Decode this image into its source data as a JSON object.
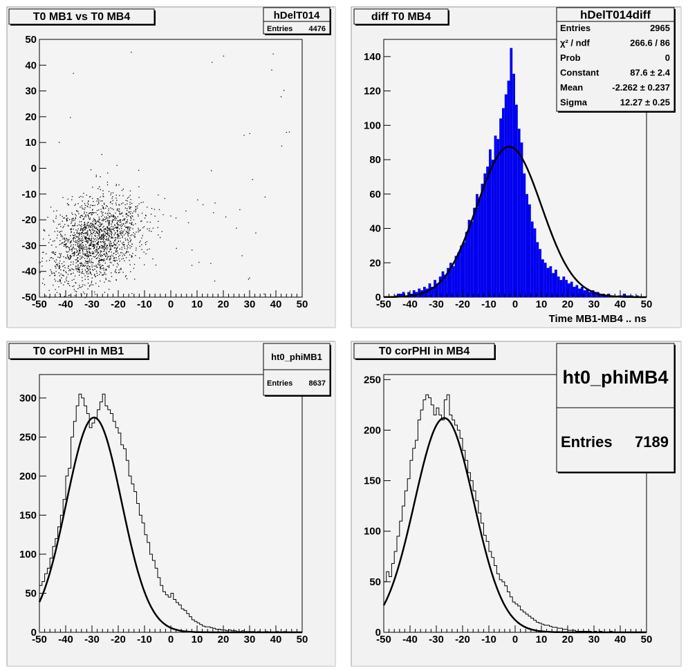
{
  "pads": [
    {
      "title": "T0 MB1 vs T0 MB4",
      "stats": {
        "name": "hDelT014",
        "rows": [
          {
            "label": "Entries",
            "value": "4476"
          }
        ]
      }
    },
    {
      "title": "diff T0 MB4",
      "stats": {
        "name": "hDelT014diff",
        "rows": [
          {
            "label": "Entries",
            "value": "2965"
          },
          {
            "label": "χ² / ndf",
            "value": "266.6 / 86"
          },
          {
            "label": "Prob",
            "value": "0"
          },
          {
            "label": "Constant",
            "value": "87.6 ± 2.4"
          },
          {
            "label": "Mean",
            "value": "-2.262 ± 0.237"
          },
          {
            "label": "Sigma",
            "value": "12.27 ± 0.25"
          }
        ]
      }
    },
    {
      "title": "T0 corPHI in MB1",
      "stats": {
        "name": "ht0_phiMB1",
        "rows": [
          {
            "label": "Entries",
            "value": "8637"
          }
        ]
      }
    },
    {
      "title": "T0 corPHI in MB4",
      "stats": {
        "name": "ht0_phiMB4",
        "rows": [
          {
            "label": "Entries",
            "value": "7189"
          }
        ]
      }
    }
  ],
  "chart_data": [
    {
      "type": "scatter",
      "title": "T0 MB1 vs T0 MB4",
      "xlim": [
        -50,
        50
      ],
      "ylim": [
        -50,
        50
      ],
      "xticks": [
        -50,
        -40,
        -30,
        -20,
        -10,
        0,
        10,
        20,
        30,
        40,
        50
      ],
      "yticks": [
        -50,
        -40,
        -30,
        -20,
        -10,
        0,
        10,
        20,
        30,
        40,
        50
      ],
      "cluster": {
        "mean_x": -29,
        "mean_y": -28,
        "sigma_x": 9,
        "sigma_y": 9,
        "correlation": 0.35
      },
      "entries": 4476
    },
    {
      "type": "bar",
      "title": "diff T0 MB4",
      "xlabel": "Time MB1-MB4  ..  ns",
      "xlim": [
        -50,
        50
      ],
      "ylim": [
        0,
        150
      ],
      "xticks": [
        -50,
        -40,
        -30,
        -20,
        -10,
        0,
        10,
        20,
        30,
        40,
        50
      ],
      "yticks": [
        0,
        20,
        40,
        60,
        80,
        100,
        120,
        140
      ],
      "bin_width": 1,
      "bin_start": -50,
      "values": [
        0,
        0,
        0,
        0,
        1,
        2,
        2,
        3,
        1,
        3,
        2,
        4,
        3,
        5,
        4,
        6,
        5,
        8,
        6,
        10,
        8,
        12,
        15,
        13,
        17,
        20,
        18,
        24,
        26,
        30,
        32,
        38,
        45,
        44,
        52,
        60,
        58,
        66,
        72,
        76,
        86,
        80,
        94,
        92,
        104,
        110,
        118,
        126,
        145,
        130,
        112,
        98,
        90,
        72,
        60,
        54,
        44,
        40,
        32,
        28,
        22,
        20,
        17,
        18,
        14,
        16,
        12,
        10,
        12,
        10,
        8,
        9,
        6,
        7,
        5,
        6,
        4,
        5,
        3,
        4,
        3,
        3,
        2,
        2,
        1,
        2,
        1,
        1,
        0,
        1,
        1,
        2,
        1,
        1,
        1,
        0,
        1,
        0,
        0,
        0
      ],
      "fit": {
        "constant": 87.6,
        "mean": -2.262,
        "sigma": 12.27
      },
      "bar_color": "#0000ee"
    },
    {
      "type": "line",
      "title": "T0 corPHI in MB1",
      "xlim": [
        -50,
        50
      ],
      "ylim": [
        0,
        330
      ],
      "xticks": [
        -50,
        -40,
        -30,
        -20,
        -10,
        0,
        10,
        20,
        30,
        40,
        50
      ],
      "yticks": [
        0,
        50,
        100,
        150,
        200,
        250,
        300
      ],
      "bin_width": 1,
      "bin_start": -50,
      "values": [
        60,
        65,
        75,
        82,
        95,
        110,
        120,
        135,
        150,
        170,
        200,
        210,
        250,
        270,
        290,
        305,
        300,
        290,
        280,
        262,
        268,
        275,
        285,
        295,
        305,
        290,
        285,
        280,
        270,
        262,
        255,
        240,
        235,
        220,
        200,
        190,
        180,
        165,
        150,
        140,
        125,
        115,
        100,
        92,
        82,
        70,
        60,
        52,
        48,
        45,
        50,
        42,
        38,
        35,
        30,
        28,
        24,
        20,
        16,
        14,
        12,
        10,
        8,
        7,
        7,
        6,
        5,
        4,
        4,
        3,
        3,
        2,
        3,
        2,
        2,
        1,
        1,
        2,
        1,
        1,
        1,
        1,
        0,
        1,
        0,
        0,
        1,
        0,
        0,
        0,
        1,
        0,
        0,
        1,
        0,
        0,
        0,
        0,
        0,
        0
      ],
      "fit": {
        "constant": 275,
        "mean": -29.2,
        "sigma": 10.5
      }
    },
    {
      "type": "line",
      "title": "T0 corPHI in MB4",
      "xlim": [
        -50,
        50
      ],
      "ylim": [
        0,
        255
      ],
      "xticks": [
        -50,
        -40,
        -30,
        -20,
        -10,
        0,
        10,
        20,
        30,
        40,
        50
      ],
      "yticks": [
        0,
        50,
        100,
        150,
        200,
        250
      ],
      "bin_width": 1,
      "bin_start": -50,
      "values": [
        50,
        60,
        55,
        68,
        80,
        95,
        110,
        125,
        140,
        152,
        170,
        182,
        190,
        210,
        220,
        230,
        235,
        232,
        225,
        215,
        222,
        215,
        210,
        230,
        235,
        215,
        210,
        205,
        200,
        192,
        180,
        170,
        158,
        150,
        140,
        130,
        118,
        108,
        96,
        90,
        80,
        74,
        66,
        58,
        52,
        50,
        46,
        40,
        35,
        30,
        28,
        26,
        22,
        20,
        18,
        16,
        14,
        12,
        10,
        9,
        8,
        7,
        7,
        6,
        5,
        5,
        4,
        4,
        3,
        3,
        2,
        2,
        2,
        1,
        1,
        1,
        1,
        1,
        1,
        0,
        1,
        0,
        1,
        0,
        0,
        0,
        1,
        0,
        0,
        0,
        0,
        0,
        0,
        0,
        0,
        0,
        0,
        0,
        0,
        0
      ],
      "fit": {
        "constant": 212,
        "mean": -27,
        "sigma": 11.3
      }
    }
  ]
}
